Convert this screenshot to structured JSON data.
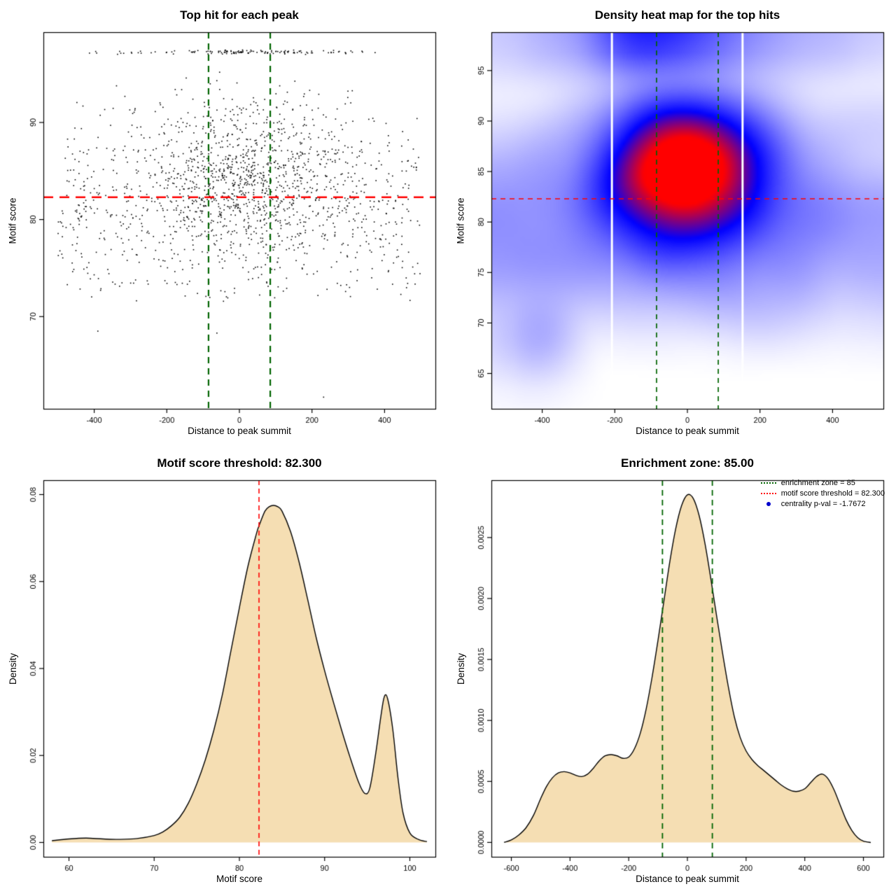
{
  "page": {
    "background": "#ffffff",
    "values": {
      "motif_score_threshold": "82.300",
      "enrichment_zone": "85.00",
      "centrality_p_val": "-1.7672"
    }
  },
  "colors": {
    "threshold_red": "#ff0000",
    "zone_green": "#006400",
    "density_fill": "#f5deb3",
    "point_black": "#000000",
    "legend_blue": "#0000cc"
  },
  "chart_data": [
    {
      "id": "top-hit-scatter",
      "type": "scatter",
      "title": "Top hit for each peak",
      "xlabel": "Distance to peak summit",
      "ylabel": "Motif score",
      "xlim": [
        -540,
        540
      ],
      "ylim": [
        60.5,
        99.3
      ],
      "xticks": {
        "values": [
          -400,
          -200,
          0,
          200,
          400
        ],
        "labels": [
          "-400",
          "-200",
          "0",
          "200",
          "400"
        ]
      },
      "yticks": {
        "values": [
          70,
          80,
          90
        ],
        "labels": [
          "70",
          "80",
          "90"
        ]
      },
      "point_color": "#000000",
      "lines": [
        {
          "orient": "h",
          "at": 82.3,
          "color": "#ff0000",
          "width": 2.6,
          "dash": [
            14,
            9
          ]
        },
        {
          "orient": "v",
          "at": -85,
          "color": "#006400",
          "width": 2.2,
          "dash": [
            9,
            7
          ]
        },
        {
          "orient": "v",
          "at": 85,
          "color": "#006400",
          "width": 2.2,
          "dash": [
            9,
            7
          ]
        }
      ],
      "distribution": {
        "seed": 42,
        "clusters": [
          {
            "n": 880,
            "x": {
              "type": "normal",
              "mean": 20,
              "sd": 140
            },
            "xclamp": [
              -520,
              520
            ],
            "y": {
              "type": "normal",
              "mean": 84.6,
              "sd": 4.0
            },
            "yclamp": [
              72,
              95.6
            ]
          },
          {
            "n": 800,
            "x": {
              "type": "uniform",
              "min": -500,
              "max": 500
            },
            "y": {
              "type": "normal",
              "mean": 81,
              "sd": 5.2
            },
            "yclamp": [
              71.5,
              95.6
            ]
          },
          {
            "n": 95,
            "x": {
              "type": "normal",
              "mean": 40,
              "sd": 130
            },
            "xclamp": [
              -500,
              500
            ],
            "y": {
              "type": "normal",
              "mean": 97.25,
              "sd": 0.1
            }
          },
          {
            "n": 40,
            "x": {
              "type": "uniform",
              "min": -490,
              "max": 350
            },
            "y": {
              "type": "normal",
              "mean": 97.25,
              "sd": 0.1
            }
          }
        ],
        "extra_points": [
          [
            -390,
            68.5
          ],
          [
            232,
            61.7
          ],
          [
            -62,
            68.3
          ]
        ]
      }
    },
    {
      "id": "top-hits-heatmap",
      "type": "heatmap",
      "title": "Density heat map for the top hits",
      "xlabel": "Distance to peak summit",
      "ylabel": "Motif score",
      "xlim": [
        -540,
        540
      ],
      "ylim": [
        61.5,
        98.8
      ],
      "xticks": {
        "values": [
          -400,
          -200,
          0,
          200,
          400
        ],
        "labels": [
          "-400",
          "-200",
          "0",
          "200",
          "400"
        ]
      },
      "yticks": {
        "values": [
          65,
          70,
          75,
          80,
          85,
          90,
          95
        ],
        "labels": [
          "65",
          "70",
          "75",
          "80",
          "85",
          "90",
          "95"
        ]
      },
      "palette": [
        {
          "t": 0,
          "c": "#ffffff"
        },
        {
          "t": 0.55,
          "c": "#0000ff"
        },
        {
          "t": 0.85,
          "c": "#ff0000"
        },
        {
          "t": 1,
          "c": "#ff0000"
        }
      ],
      "gamma": 0.62,
      "kde": {
        "grid": 120,
        "blur_radius": 6,
        "blur_passes": 3
      },
      "gap_lines_x": [
        -208,
        152
      ],
      "lines": [
        {
          "orient": "h",
          "at": 82.3,
          "color": "#ff0000",
          "width": 1.5,
          "dash": [
            7,
            6
          ]
        },
        {
          "orient": "v",
          "at": -85,
          "color": "#006400",
          "width": 1.7,
          "dash": [
            7,
            6
          ]
        },
        {
          "orient": "v",
          "at": 85,
          "color": "#006400",
          "width": 1.7,
          "dash": [
            7,
            6
          ]
        }
      ],
      "distribution": {
        "seed": 7,
        "clusters": [
          {
            "n": 1500,
            "x": {
              "type": "normal",
              "mean": 5,
              "sd": 115
            },
            "y": {
              "type": "normal",
              "mean": 85.8,
              "sd": 3.3
            },
            "yclamp": [
              75,
              94
            ]
          },
          {
            "n": 500,
            "x": {
              "type": "normal",
              "mean": -30,
              "sd": 220
            },
            "y": {
              "type": "normal",
              "mean": 80.5,
              "sd": 4.0
            },
            "yclamp": [
              73,
              92
            ]
          },
          {
            "n": 620,
            "x": {
              "type": "uniform",
              "min": -530,
              "max": 530
            },
            "y": {
              "type": "normal",
              "mean": 79.5,
              "sd": 5.5
            },
            "yclamp": [
              70,
              93.5
            ]
          },
          {
            "n": 170,
            "x": {
              "type": "normal",
              "mean": -40,
              "sd": 150
            },
            "y": {
              "type": "normal",
              "mean": 97.4,
              "sd": 0.7
            }
          },
          {
            "n": 90,
            "x": {
              "type": "uniform",
              "min": -500,
              "max": 500
            },
            "y": {
              "type": "normal",
              "mean": 97.4,
              "sd": 0.8
            }
          },
          {
            "n": 28,
            "x": {
              "type": "normal",
              "mean": -420,
              "sd": 30
            },
            "y": {
              "type": "normal",
              "mean": 68.3,
              "sd": 1.2
            }
          }
        ]
      }
    },
    {
      "id": "motif-score-density",
      "type": "area",
      "title": "Motif score threshold: 82.300",
      "xlabel": "Motif score",
      "ylabel": "Density",
      "xlim": [
        57,
        103
      ],
      "ylim": [
        -0.0033,
        0.0833
      ],
      "xticks": {
        "values": [
          60,
          70,
          80,
          90,
          100
        ],
        "labels": [
          "60",
          "70",
          "80",
          "90",
          "100"
        ]
      },
      "yticks": {
        "values": [
          0,
          0.02,
          0.04,
          0.06,
          0.08
        ],
        "labels": [
          "0.00",
          "0.02",
          "0.04",
          "0.06",
          "0.08"
        ]
      },
      "fill": "#f5deb3",
      "lines": [
        {
          "orient": "v",
          "at": 82.3,
          "color": "#ff0000",
          "width": 1.6,
          "dash": [
            7,
            5
          ]
        }
      ],
      "curve": {
        "x": [
          58,
          60,
          62,
          64,
          66,
          68,
          70,
          71,
          72,
          73,
          74,
          75,
          76,
          77,
          78,
          79,
          80,
          81,
          82,
          82.3,
          83,
          83.5,
          84,
          84.5,
          85,
          86,
          87,
          88,
          89,
          90,
          91,
          92,
          93,
          94,
          94.7,
          95.3,
          96,
          96.6,
          97,
          97.4,
          98,
          98.6,
          99.2,
          100,
          101,
          102
        ],
        "y": [
          0.0004,
          0.0008,
          0.001,
          0.0008,
          0.0007,
          0.0009,
          0.0016,
          0.0024,
          0.0038,
          0.0058,
          0.009,
          0.0135,
          0.019,
          0.0258,
          0.034,
          0.044,
          0.054,
          0.0635,
          0.071,
          0.0728,
          0.0762,
          0.0772,
          0.0775,
          0.0772,
          0.0762,
          0.0715,
          0.0645,
          0.056,
          0.0472,
          0.0395,
          0.0325,
          0.0258,
          0.0195,
          0.0138,
          0.0113,
          0.0125,
          0.0205,
          0.029,
          0.0335,
          0.033,
          0.026,
          0.015,
          0.0068,
          0.0022,
          0.0007,
          0.0002
        ]
      }
    },
    {
      "id": "distance-density",
      "type": "area",
      "title": "Enrichment zone: 85.00",
      "xlabel": "Distance to peak summit",
      "ylabel": "Density",
      "xlim": [
        -668,
        668
      ],
      "ylim": [
        -0.000118,
        0.00297
      ],
      "xticks": {
        "values": [
          -600,
          -400,
          -200,
          0,
          200,
          400,
          600
        ],
        "labels": [
          "-600",
          "-400",
          "-200",
          "0",
          "200",
          "400",
          "600"
        ]
      },
      "yticks": {
        "values": [
          0,
          0.0005,
          0.001,
          0.0015,
          0.002,
          0.0025
        ],
        "labels": [
          "0.0000",
          "0.0005",
          "0.0010",
          "0.0015",
          "0.0020",
          "0.0025"
        ]
      },
      "fill": "#f5deb3",
      "lines": [
        {
          "orient": "v",
          "at": -85,
          "color": "#006400",
          "width": 1.8,
          "dash": [
            8,
            6
          ]
        },
        {
          "orient": "v",
          "at": 85,
          "color": "#006400",
          "width": 1.8,
          "dash": [
            8,
            6
          ]
        }
      ],
      "curve": {
        "x": [
          -625,
          -600,
          -575,
          -550,
          -525,
          -500,
          -480,
          -460,
          -440,
          -420,
          -400,
          -380,
          -360,
          -340,
          -320,
          -300,
          -280,
          -260,
          -240,
          -220,
          -200,
          -180,
          -160,
          -140,
          -120,
          -100,
          -80,
          -60,
          -40,
          -20,
          0,
          20,
          40,
          60,
          80,
          100,
          120,
          140,
          160,
          180,
          200,
          220,
          240,
          260,
          280,
          300,
          320,
          340,
          360,
          380,
          400,
          420,
          440,
          460,
          480,
          500,
          520,
          540,
          560,
          580,
          600,
          625
        ],
        "y": [
          0,
          2e-05,
          6e-05,
          0.00012,
          0.00022,
          0.00036,
          0.00046,
          0.00053,
          0.00057,
          0.00058,
          0.00057,
          0.00055,
          0.00054,
          0.00056,
          0.00061,
          0.00067,
          0.00071,
          0.00072,
          0.00071,
          0.00069,
          0.0007,
          0.00077,
          0.0009,
          0.0011,
          0.00136,
          0.00166,
          0.00198,
          0.0023,
          0.00257,
          0.00276,
          0.00285,
          0.00282,
          0.00268,
          0.00245,
          0.00216,
          0.00185,
          0.00155,
          0.00127,
          0.00103,
          0.00086,
          0.00075,
          0.00068,
          0.00063,
          0.00059,
          0.00055,
          0.00051,
          0.00047,
          0.00044,
          0.00042,
          0.00042,
          0.00044,
          0.00049,
          0.00054,
          0.00056,
          0.00052,
          0.00043,
          0.00031,
          0.00019,
          0.0001,
          4e-05,
          1e-05,
          0
        ]
      },
      "legend": [
        {
          "marker": "line",
          "color": "#006400",
          "label": "enrichment zone = 85"
        },
        {
          "marker": "line",
          "color": "#ff0000",
          "label": "motif score threshold = 82.300"
        },
        {
          "marker": "point",
          "color": "#0000cc",
          "label": "centrality p-val = -1.7672"
        }
      ]
    }
  ]
}
